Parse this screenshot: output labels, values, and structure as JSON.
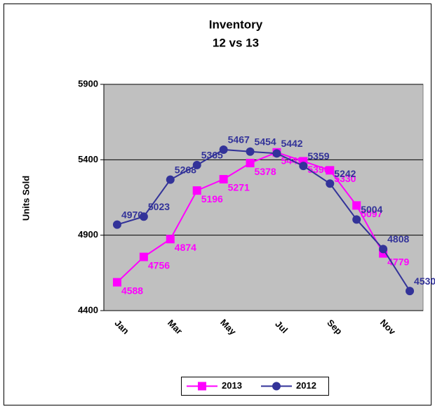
{
  "chart_data": {
    "type": "line",
    "title": "Inventory",
    "subtitle": "12 vs 13",
    "y_label": "Units Sold",
    "categories": [
      "Jan",
      null,
      "Mar",
      null,
      "May",
      null,
      "Jul",
      null,
      "Sep",
      null,
      "Nov",
      null
    ],
    "series": [
      {
        "name": "2013",
        "color": "#ff00ff",
        "marker": "square",
        "values": [
          4588,
          4756,
          4874,
          5196,
          5271,
          5378,
          5449,
          5390,
          5330,
          5097,
          4779,
          null
        ]
      },
      {
        "name": "2012",
        "color": "#333399",
        "marker": "circle",
        "values": [
          4970,
          5023,
          5268,
          5365,
          5467,
          5454,
          5442,
          5359,
          5242,
          5004,
          4808,
          4530
        ]
      }
    ],
    "ylim": [
      4400,
      5900
    ],
    "yticks": [
      4400,
      4900,
      5400,
      5900
    ],
    "grid": true,
    "legend": "bottom"
  }
}
